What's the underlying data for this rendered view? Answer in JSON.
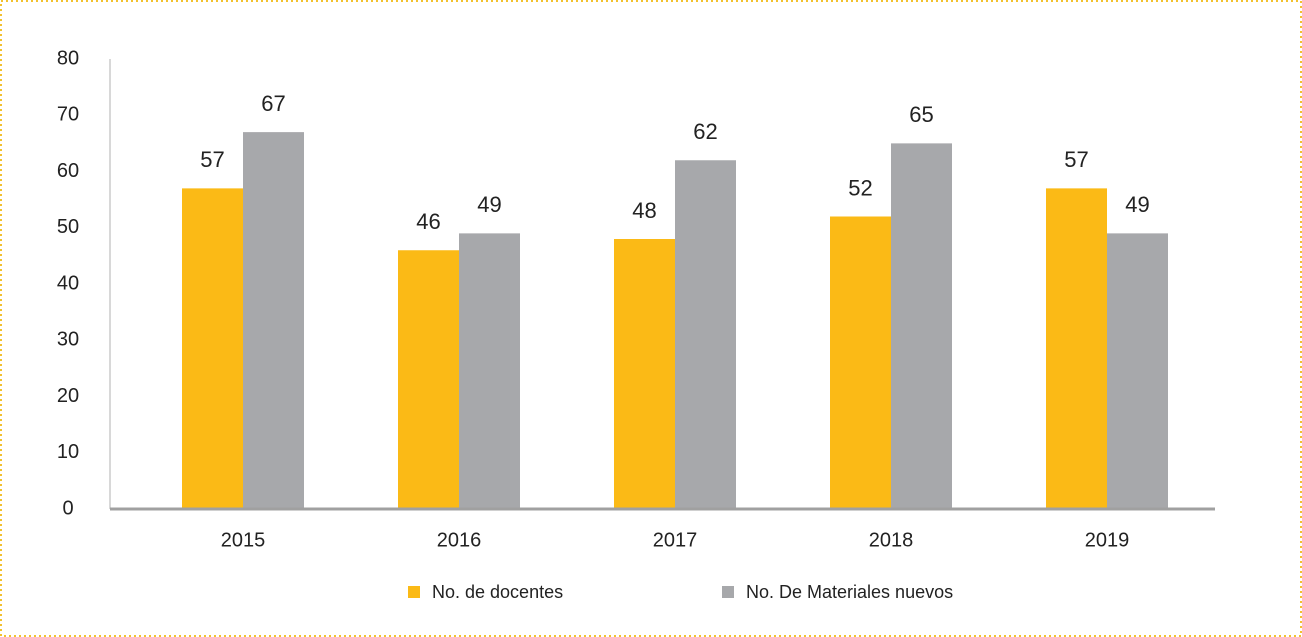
{
  "chart_data": {
    "type": "bar",
    "categories": [
      "2015",
      "2016",
      "2017",
      "2018",
      "2019"
    ],
    "series": [
      {
        "name": "No. de docentes",
        "color": "#fbba16",
        "values": [
          57,
          46,
          48,
          52,
          57
        ]
      },
      {
        "name": "No. De Materiales nuevos",
        "color": "#a7a8ab",
        "values": [
          67,
          49,
          62,
          65,
          49
        ]
      }
    ],
    "ylim": [
      0,
      80
    ],
    "yticks": [
      0,
      10,
      20,
      30,
      40,
      50,
      60,
      70,
      80
    ],
    "grid": false,
    "legend": "bottom"
  }
}
